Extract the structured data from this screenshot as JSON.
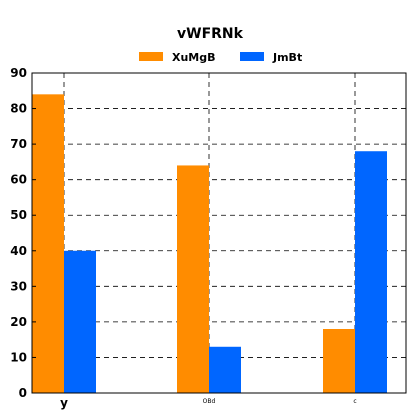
{
  "chart_data": {
    "type": "bar",
    "title": "vWFRNk",
    "categories": [
      "y",
      "OBd",
      "c"
    ],
    "series": [
      {
        "name": "XuMgB",
        "color": "#ff8c00",
        "values": [
          84,
          64,
          18
        ]
      },
      {
        "name": "JmBt",
        "color": "#0066ff",
        "values": [
          40,
          13,
          68
        ]
      }
    ],
    "ylim": [
      0,
      90
    ],
    "yticks": [
      0,
      10,
      20,
      30,
      40,
      50,
      60,
      70,
      80,
      90
    ],
    "grid": true,
    "legend_position": "top"
  }
}
